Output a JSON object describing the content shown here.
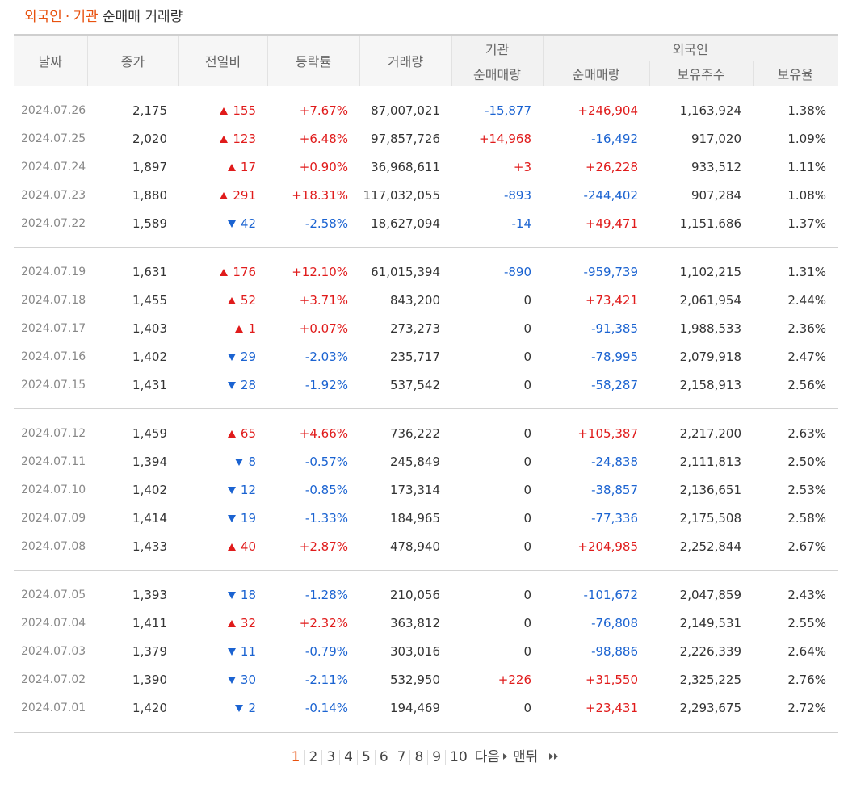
{
  "title": {
    "part1": "외국인",
    "sep": "·",
    "part2": "기관",
    "rest": "순매매 거래량"
  },
  "headers": {
    "date": "날짜",
    "close": "종가",
    "change": "전일비",
    "rate": "등락률",
    "volume": "거래량",
    "inst_group": "기관",
    "foreign_group": "외국인",
    "inst_net": "순매매량",
    "foreign_net": "순매매량",
    "holdings": "보유주수",
    "ratio": "보유율"
  },
  "groups": [
    [
      {
        "date": "2024.07.26",
        "close": "2,175",
        "dir": "up",
        "change": "155",
        "rate": "+7.67%",
        "volume": "87,007,021",
        "inst": "-15,877",
        "foreign": "+246,904",
        "holdings": "1,163,924",
        "ratio": "1.38%"
      },
      {
        "date": "2024.07.25",
        "close": "2,020",
        "dir": "up",
        "change": "123",
        "rate": "+6.48%",
        "volume": "97,857,726",
        "inst": "+14,968",
        "foreign": "-16,492",
        "holdings": "917,020",
        "ratio": "1.09%"
      },
      {
        "date": "2024.07.24",
        "close": "1,897",
        "dir": "up",
        "change": "17",
        "rate": "+0.90%",
        "volume": "36,968,611",
        "inst": "+3",
        "foreign": "+26,228",
        "holdings": "933,512",
        "ratio": "1.11%"
      },
      {
        "date": "2024.07.23",
        "close": "1,880",
        "dir": "up",
        "change": "291",
        "rate": "+18.31%",
        "volume": "117,032,055",
        "inst": "-893",
        "foreign": "-244,402",
        "holdings": "907,284",
        "ratio": "1.08%"
      },
      {
        "date": "2024.07.22",
        "close": "1,589",
        "dir": "dn",
        "change": "42",
        "rate": "-2.58%",
        "volume": "18,627,094",
        "inst": "-14",
        "foreign": "+49,471",
        "holdings": "1,151,686",
        "ratio": "1.37%"
      }
    ],
    [
      {
        "date": "2024.07.19",
        "close": "1,631",
        "dir": "up",
        "change": "176",
        "rate": "+12.10%",
        "volume": "61,015,394",
        "inst": "-890",
        "foreign": "-959,739",
        "holdings": "1,102,215",
        "ratio": "1.31%"
      },
      {
        "date": "2024.07.18",
        "close": "1,455",
        "dir": "up",
        "change": "52",
        "rate": "+3.71%",
        "volume": "843,200",
        "inst": "0",
        "foreign": "+73,421",
        "holdings": "2,061,954",
        "ratio": "2.44%"
      },
      {
        "date": "2024.07.17",
        "close": "1,403",
        "dir": "up",
        "change": "1",
        "rate": "+0.07%",
        "volume": "273,273",
        "inst": "0",
        "foreign": "-91,385",
        "holdings": "1,988,533",
        "ratio": "2.36%"
      },
      {
        "date": "2024.07.16",
        "close": "1,402",
        "dir": "dn",
        "change": "29",
        "rate": "-2.03%",
        "volume": "235,717",
        "inst": "0",
        "foreign": "-78,995",
        "holdings": "2,079,918",
        "ratio": "2.47%"
      },
      {
        "date": "2024.07.15",
        "close": "1,431",
        "dir": "dn",
        "change": "28",
        "rate": "-1.92%",
        "volume": "537,542",
        "inst": "0",
        "foreign": "-58,287",
        "holdings": "2,158,913",
        "ratio": "2.56%"
      }
    ],
    [
      {
        "date": "2024.07.12",
        "close": "1,459",
        "dir": "up",
        "change": "65",
        "rate": "+4.66%",
        "volume": "736,222",
        "inst": "0",
        "foreign": "+105,387",
        "holdings": "2,217,200",
        "ratio": "2.63%"
      },
      {
        "date": "2024.07.11",
        "close": "1,394",
        "dir": "dn",
        "change": "8",
        "rate": "-0.57%",
        "volume": "245,849",
        "inst": "0",
        "foreign": "-24,838",
        "holdings": "2,111,813",
        "ratio": "2.50%"
      },
      {
        "date": "2024.07.10",
        "close": "1,402",
        "dir": "dn",
        "change": "12",
        "rate": "-0.85%",
        "volume": "173,314",
        "inst": "0",
        "foreign": "-38,857",
        "holdings": "2,136,651",
        "ratio": "2.53%"
      },
      {
        "date": "2024.07.09",
        "close": "1,414",
        "dir": "dn",
        "change": "19",
        "rate": "-1.33%",
        "volume": "184,965",
        "inst": "0",
        "foreign": "-77,336",
        "holdings": "2,175,508",
        "ratio": "2.58%"
      },
      {
        "date": "2024.07.08",
        "close": "1,433",
        "dir": "up",
        "change": "40",
        "rate": "+2.87%",
        "volume": "478,940",
        "inst": "0",
        "foreign": "+204,985",
        "holdings": "2,252,844",
        "ratio": "2.67%"
      }
    ],
    [
      {
        "date": "2024.07.05",
        "close": "1,393",
        "dir": "dn",
        "change": "18",
        "rate": "-1.28%",
        "volume": "210,056",
        "inst": "0",
        "foreign": "-101,672",
        "holdings": "2,047,859",
        "ratio": "2.43%"
      },
      {
        "date": "2024.07.04",
        "close": "1,411",
        "dir": "up",
        "change": "32",
        "rate": "+2.32%",
        "volume": "363,812",
        "inst": "0",
        "foreign": "-76,808",
        "holdings": "2,149,531",
        "ratio": "2.55%"
      },
      {
        "date": "2024.07.03",
        "close": "1,379",
        "dir": "dn",
        "change": "11",
        "rate": "-0.79%",
        "volume": "303,016",
        "inst": "0",
        "foreign": "-98,886",
        "holdings": "2,226,339",
        "ratio": "2.64%"
      },
      {
        "date": "2024.07.02",
        "close": "1,390",
        "dir": "dn",
        "change": "30",
        "rate": "-2.11%",
        "volume": "532,950",
        "inst": "+226",
        "foreign": "+31,550",
        "holdings": "2,325,225",
        "ratio": "2.76%"
      },
      {
        "date": "2024.07.01",
        "close": "1,420",
        "dir": "dn",
        "change": "2",
        "rate": "-0.14%",
        "volume": "194,469",
        "inst": "0",
        "foreign": "+23,431",
        "holdings": "2,293,675",
        "ratio": "2.72%"
      }
    ]
  ],
  "pager": {
    "pages": [
      "1",
      "2",
      "3",
      "4",
      "5",
      "6",
      "7",
      "8",
      "9",
      "10"
    ],
    "next_label": "다음",
    "last_label": "맨뒤",
    "current": "1"
  },
  "colors": {
    "up": "#e01b1b",
    "down": "#1b63d1",
    "accent": "#e8520f"
  }
}
